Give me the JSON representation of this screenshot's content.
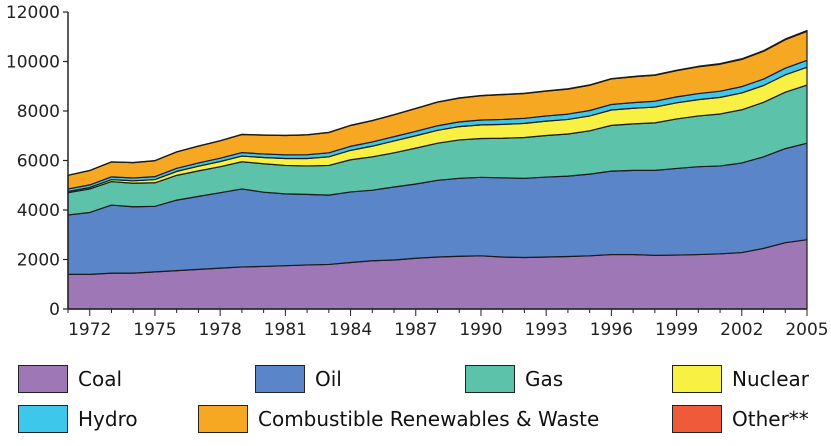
{
  "chart_data": {
    "type": "area",
    "stacked": true,
    "x": [
      1971,
      1972,
      1973,
      1974,
      1975,
      1976,
      1977,
      1978,
      1979,
      1980,
      1981,
      1982,
      1983,
      1984,
      1985,
      1986,
      1987,
      1988,
      1989,
      1990,
      1991,
      1992,
      1993,
      1994,
      1995,
      1996,
      1997,
      1998,
      1999,
      2000,
      2001,
      2002,
      2003,
      2004,
      2005
    ],
    "xticks": [
      1972,
      1975,
      1978,
      1981,
      1984,
      1987,
      1990,
      1993,
      1996,
      1999,
      2002,
      2005
    ],
    "ylim": [
      0,
      12000
    ],
    "yticks": [
      0,
      2000,
      4000,
      6000,
      8000,
      10000,
      12000
    ],
    "grid": false,
    "legend_position": "bottom",
    "series": [
      {
        "name": "Coal",
        "color": "#9e78b6",
        "values": [
          1400,
          1400,
          1450,
          1450,
          1500,
          1550,
          1600,
          1650,
          1700,
          1720,
          1750,
          1780,
          1800,
          1880,
          1950,
          1980,
          2050,
          2100,
          2130,
          2150,
          2100,
          2080,
          2100,
          2120,
          2150,
          2200,
          2200,
          2170,
          2180,
          2200,
          2230,
          2280,
          2450,
          2680,
          2800
        ]
      },
      {
        "name": "Oil",
        "color": "#5a85c9",
        "values": [
          2400,
          2500,
          2750,
          2680,
          2650,
          2850,
          2950,
          3050,
          3150,
          3000,
          2900,
          2850,
          2800,
          2850,
          2850,
          2950,
          3000,
          3100,
          3150,
          3170,
          3200,
          3200,
          3230,
          3250,
          3300,
          3370,
          3400,
          3430,
          3500,
          3550,
          3550,
          3620,
          3700,
          3800,
          3900
        ]
      },
      {
        "name": "Gas",
        "color": "#5cc2aa",
        "values": [
          900,
          950,
          950,
          950,
          950,
          1000,
          1030,
          1050,
          1100,
          1150,
          1150,
          1150,
          1200,
          1300,
          1350,
          1380,
          1450,
          1500,
          1550,
          1570,
          1600,
          1650,
          1680,
          1700,
          1750,
          1850,
          1880,
          1920,
          2000,
          2050,
          2100,
          2150,
          2200,
          2280,
          2350
        ]
      },
      {
        "name": "Nuclear",
        "color": "#f8f042",
        "values": [
          50,
          60,
          80,
          100,
          130,
          160,
          190,
          210,
          230,
          250,
          280,
          300,
          350,
          380,
          430,
          480,
          500,
          520,
          540,
          550,
          560,
          570,
          580,
          590,
          600,
          620,
          630,
          640,
          650,
          660,
          670,
          680,
          680,
          700,
          720
        ]
      },
      {
        "name": "Hydro",
        "color": "#3cc7eb",
        "values": [
          100,
          105,
          110,
          115,
          120,
          125,
          130,
          135,
          140,
          145,
          150,
          155,
          160,
          165,
          170,
          175,
          180,
          185,
          190,
          195,
          200,
          205,
          210,
          215,
          220,
          225,
          230,
          235,
          240,
          245,
          250,
          255,
          260,
          270,
          280
        ]
      },
      {
        "name": "Combustible Renewables & Waste",
        "color": "#f7a823",
        "values": [
          550,
          580,
          600,
          620,
          640,
          660,
          680,
          700,
          730,
          760,
          780,
          800,
          820,
          840,
          860,
          880,
          920,
          950,
          960,
          980,
          1000,
          1000,
          1000,
          1010,
          1020,
          1030,
          1040,
          1050,
          1060,
          1080,
          1090,
          1100,
          1120,
          1150,
          1170
        ]
      },
      {
        "name": "Other**",
        "color": "#ef5a3a",
        "values": [
          5,
          5,
          5,
          6,
          6,
          6,
          6,
          7,
          7,
          7,
          8,
          8,
          8,
          9,
          9,
          10,
          10,
          11,
          11,
          12,
          12,
          13,
          13,
          14,
          15,
          16,
          17,
          18,
          20,
          22,
          24,
          26,
          28,
          30,
          32
        ]
      }
    ]
  }
}
